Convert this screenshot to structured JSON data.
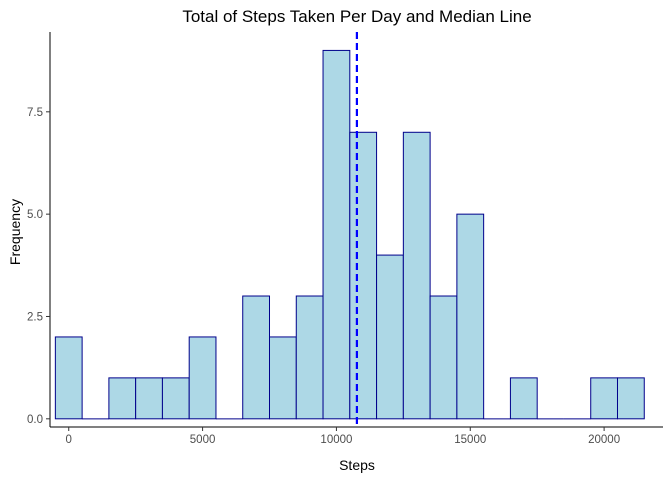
{
  "chart_data": {
    "type": "bar",
    "title": "Total of Steps Taken Per Day and Median Line",
    "xlabel": "Steps",
    "ylabel": "Frequency",
    "xlim": [
      -700,
      22200
    ],
    "ylim": [
      -0.2,
      9.45
    ],
    "x_ticks": [
      {
        "value": 0,
        "label": "0"
      },
      {
        "value": 5000,
        "label": "5000"
      },
      {
        "value": 10000,
        "label": "10000"
      },
      {
        "value": 15000,
        "label": "15000"
      },
      {
        "value": 20000,
        "label": "20000"
      }
    ],
    "y_ticks": [
      {
        "value": 0,
        "label": "0.0"
      },
      {
        "value": 2.5,
        "label": "2.5"
      },
      {
        "value": 5,
        "label": "5.0"
      },
      {
        "value": 7.5,
        "label": "7.5"
      }
    ],
    "bin_width": 1000,
    "bins": [
      {
        "center": 0,
        "count": 2
      },
      {
        "center": 1000,
        "count": 0
      },
      {
        "center": 2000,
        "count": 1
      },
      {
        "center": 3000,
        "count": 1
      },
      {
        "center": 4000,
        "count": 1
      },
      {
        "center": 5000,
        "count": 2
      },
      {
        "center": 6000,
        "count": 0
      },
      {
        "center": 7000,
        "count": 3
      },
      {
        "center": 8000,
        "count": 2
      },
      {
        "center": 9000,
        "count": 3
      },
      {
        "center": 10000,
        "count": 9
      },
      {
        "center": 11000,
        "count": 7
      },
      {
        "center": 12000,
        "count": 4
      },
      {
        "center": 13000,
        "count": 7
      },
      {
        "center": 14000,
        "count": 3
      },
      {
        "center": 15000,
        "count": 5
      },
      {
        "center": 16000,
        "count": 0
      },
      {
        "center": 17000,
        "count": 1
      },
      {
        "center": 18000,
        "count": 0
      },
      {
        "center": 19000,
        "count": 0
      },
      {
        "center": 20000,
        "count": 1
      },
      {
        "center": 21000,
        "count": 1
      }
    ],
    "median": 10765,
    "bar_fill": "#add8e6",
    "bar_stroke": "#00008b",
    "median_line_color": "#0000ff",
    "grid": false
  }
}
